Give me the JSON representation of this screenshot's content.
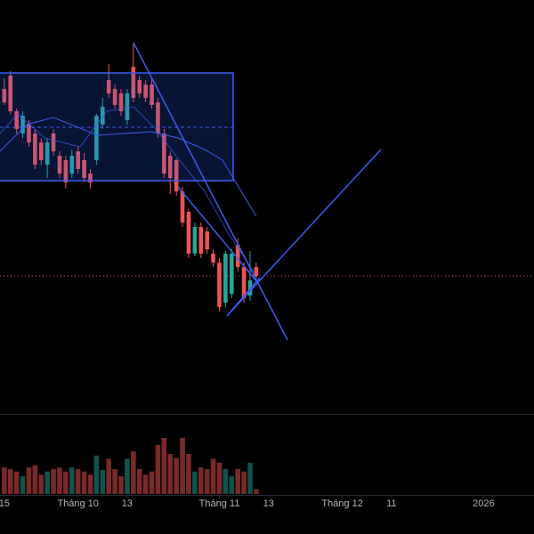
{
  "chart_data": {
    "type": "candlestick",
    "x": [
      0,
      1,
      2,
      3,
      4,
      5,
      6,
      7,
      8,
      9,
      10,
      11,
      12,
      13,
      14,
      15,
      16,
      17,
      18,
      19,
      20,
      21,
      22,
      23,
      24,
      25,
      26,
      27,
      28,
      29,
      30,
      31,
      32,
      33,
      34,
      35,
      36,
      37,
      38,
      39,
      40,
      41
    ],
    "open": [
      36.5,
      38.0,
      34.0,
      31.5,
      32.5,
      31.5,
      30.5,
      28.0,
      31.5,
      29.0,
      28.5,
      27.0,
      29.5,
      28.5,
      27.0,
      28.5,
      32.5,
      37.5,
      36.5,
      36.0,
      33.0,
      39.0,
      37.5,
      37.0,
      37.0,
      35.0,
      31.5,
      29.0,
      28.5,
      25.0,
      22.7,
      18.0,
      21.0,
      20.5,
      18.0,
      17.0,
      12.5,
      13.5,
      19.0,
      16.5,
      13.3,
      16.5
    ],
    "high": [
      37.7,
      38.5,
      34.3,
      34.0,
      33.0,
      32.0,
      31.0,
      31.0,
      32.0,
      29.5,
      29.0,
      29.7,
      30.0,
      29.3,
      27.5,
      33.7,
      35.5,
      39.3,
      37.0,
      36.5,
      36.5,
      41.7,
      38.0,
      37.5,
      37.7,
      35.5,
      32.0,
      29.5,
      28.7,
      25.5,
      23.0,
      21.5,
      21.5,
      21.0,
      18.5,
      17.5,
      18.3,
      18.5,
      19.7,
      17.0,
      18.3,
      17.0
    ],
    "low": [
      34.7,
      33.7,
      31.5,
      31.0,
      30.0,
      27.5,
      28.0,
      26.5,
      29.0,
      26.5,
      25.3,
      26.5,
      27.0,
      26.0,
      25.3,
      28.0,
      32.0,
      35.5,
      34.3,
      33.5,
      32.5,
      35.0,
      35.5,
      35.0,
      34.3,
      31.0,
      26.5,
      24.7,
      24.5,
      21.0,
      17.5,
      17.7,
      17.5,
      18.0,
      16.5,
      11.5,
      12.0,
      13.0,
      16.0,
      12.5,
      12.7,
      15.3
    ],
    "close": [
      35.0,
      34.0,
      32.0,
      33.5,
      30.5,
      28.0,
      28.5,
      30.5,
      29.5,
      27.0,
      26.0,
      29.0,
      27.5,
      26.5,
      26.0,
      33.5,
      34.5,
      36.0,
      34.7,
      34.0,
      36.0,
      35.5,
      36.0,
      35.5,
      34.7,
      31.5,
      27.0,
      26.5,
      25.0,
      21.5,
      18.0,
      21.0,
      18.0,
      18.5,
      17.0,
      12.0,
      18.0,
      18.0,
      16.5,
      13.0,
      15.0,
      15.5
    ],
    "volume": [
      33,
      31,
      28,
      22,
      33,
      36,
      24,
      28,
      31,
      33,
      28,
      33,
      31,
      28,
      24,
      48,
      30,
      44,
      31,
      22,
      44,
      53,
      31,
      24,
      28,
      61,
      70,
      50,
      45,
      70,
      50,
      28,
      33,
      31,
      44,
      39,
      31,
      22,
      31,
      28,
      39,
      6
    ],
    "up_color": "#26a69a",
    "down_color": "#ef5350",
    "xlim": [
      -0.7,
      86.2
    ],
    "ylim": [
      0,
      46.5
    ],
    "volume_ylim": [
      0,
      100
    ],
    "xticks": [
      {
        "value": 0,
        "label": "15"
      },
      {
        "value": 12,
        "label": "Tháng 10"
      },
      {
        "value": 20,
        "label": "13"
      },
      {
        "value": 35,
        "label": "Tháng 11"
      },
      {
        "value": 43,
        "label": "13"
      },
      {
        "value": 55,
        "label": "Tháng 12"
      },
      {
        "value": 63,
        "label": "11"
      },
      {
        "value": 78,
        "label": "2026"
      }
    ]
  }
}
